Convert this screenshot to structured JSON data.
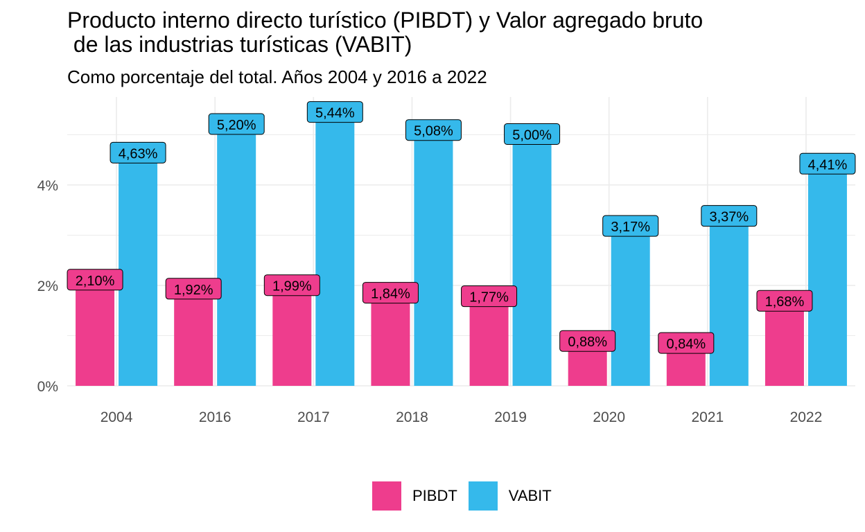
{
  "title_line1": "Producto interno directo turístico (PIBDT) y Valor agregado bruto",
  "title_line2": " de las industrias turísticas (VABIT)",
  "subtitle": "Como porcentaje del total. Años 2004 y 2016 a 2022",
  "chart_data": {
    "type": "bar",
    "title": "Producto interno directo turístico (PIBDT) y Valor agregado bruto de las industrias turísticas (VABIT)",
    "subtitle": "Como porcentaje del total. Años 2004 y 2016 a 2022",
    "xlabel": "",
    "ylabel": "",
    "categories": [
      "2004",
      "2016",
      "2017",
      "2018",
      "2019",
      "2020",
      "2021",
      "2022"
    ],
    "series": [
      {
        "name": "PIBDT",
        "color": "#EE3D8D",
        "values": [
          2.1,
          1.92,
          1.99,
          1.84,
          1.77,
          0.88,
          0.84,
          1.68
        ],
        "labels": [
          "2,10%",
          "1,92%",
          "1,99%",
          "1,84%",
          "1,77%",
          "0,88%",
          "0,84%",
          "1,68%"
        ]
      },
      {
        "name": "VABIT",
        "color": "#35B9EB",
        "values": [
          4.63,
          5.2,
          5.44,
          5.08,
          5.0,
          3.17,
          3.37,
          4.41
        ],
        "labels": [
          "4,63%",
          "5,20%",
          "5,44%",
          "5,08%",
          "5,00%",
          "3,17%",
          "3,37%",
          "4,41%"
        ]
      }
    ],
    "yticks": [
      0,
      2,
      4
    ],
    "ytick_labels": [
      "0%",
      "2%",
      "4%"
    ],
    "ylim": [
      0,
      5.7
    ],
    "grid": true,
    "legend_position": "bottom"
  }
}
